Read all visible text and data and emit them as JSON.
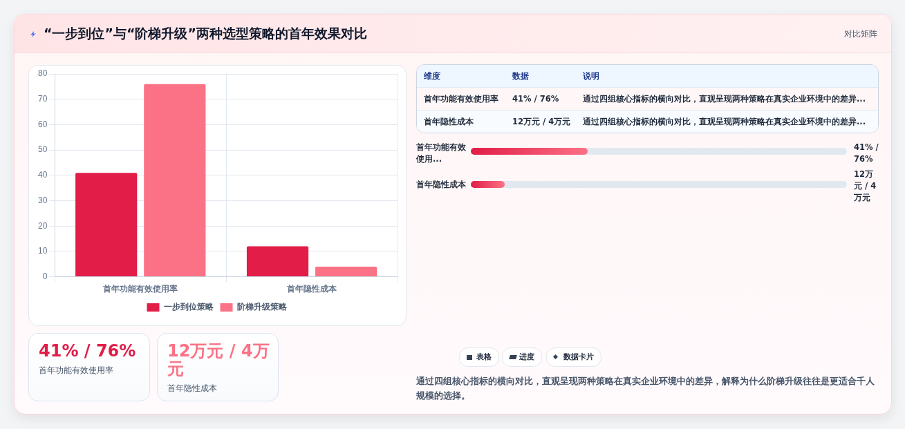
{
  "chart_data": [
    {
      "type": "bar",
      "title": "“一步到位”与“阶梯升级”两种选型策略的首年效果对比",
      "categories": [
        "首年功能有效使用率",
        "首年隐性成本"
      ],
      "series": [
        {
          "name": "一步到位策略",
          "color": "#e11d48",
          "values": [
            41,
            12
          ]
        },
        {
          "name": "阶梯升级策略",
          "color": "#fb7185",
          "values": [
            76,
            4
          ]
        }
      ],
      "ylim": [
        0,
        80
      ],
      "yticks": [
        0,
        10,
        20,
        30,
        40,
        50,
        60,
        70,
        80
      ],
      "grid": true,
      "legend": "bottom"
    },
    {
      "type": "other",
      "annotations": [
        "维度",
        "数据",
        "说明",
        "首年功能有效使用率",
        "41% / 76%",
        "通过四组核心指标的横向对比，直观呈现两种策略在真实企业环境中的差异...",
        "首年隐性成本",
        "12万元 / 4万元",
        "通过四组核心指标的横向对比，直观呈现两种策略在真实企业环境中的差异...",
        "首年功能有效使用...",
        "41% / 76%",
        "首年隐性成本",
        "12万元 / 4万元",
        "41% / 76%",
        "首年功能有效使用率",
        "12万元 / 4万元",
        "首年隐性成本",
        "表格",
        "进度",
        "数据卡片",
        "通过四组核心指标的横向对比，直观呈现两种策略在真实企业环境中的差异，解释为什么阶梯升级往往是更适合千人规模的选择。",
        "对比矩阵"
      ]
    }
  ]
}
